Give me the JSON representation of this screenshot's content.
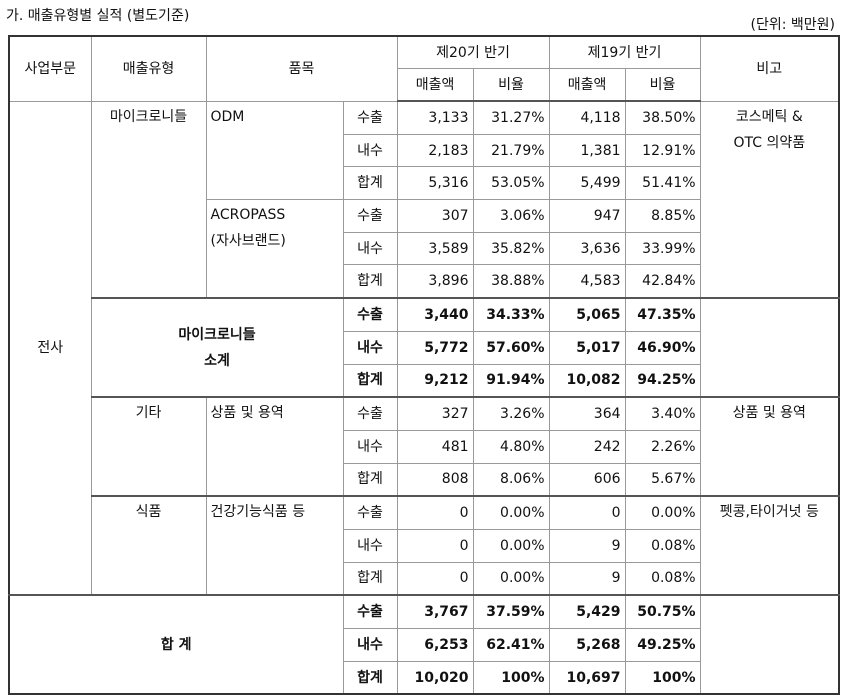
{
  "header": {
    "title": "가. 매출유형별 실적 (별도기준)",
    "unit": "(단위: 백만원)"
  },
  "table": {
    "columns": [
      "사업부문",
      "매출유형",
      "품목",
      "비고"
    ],
    "periods": [
      "제20기 반기",
      "제19기 반기"
    ],
    "subcolumns": [
      "매출액",
      "비율",
      "매출액",
      "비율"
    ],
    "division": "전사",
    "sections": [
      {
        "type": [
          "마이크로니들"
        ],
        "note": [
          "코스메틱 &",
          "OTC 의약품"
        ],
        "items": [
          {
            "product": [
              "ODM"
            ],
            "rows": [
              {
                "kind": "수출",
                "values": [
                  "3,133",
                  "31.27%",
                  "4,118",
                  "38.50%"
                ]
              },
              {
                "kind": "내수",
                "values": [
                  "2,183",
                  "21.79%",
                  "1,381",
                  "12.91%"
                ]
              },
              {
                "kind": "합계",
                "values": [
                  "5,316",
                  "53.05%",
                  "5,499",
                  "51.41%"
                ]
              }
            ]
          },
          {
            "product": [
              "ACROPASS",
              "(자사브랜드)"
            ],
            "rows": [
              {
                "kind": "수출",
                "values": [
                  "307",
                  "3.06%",
                  "947",
                  "8.85%"
                ]
              },
              {
                "kind": "내수",
                "values": [
                  "3,589",
                  "35.82%",
                  "3,636",
                  "33.99%"
                ]
              },
              {
                "kind": "합계",
                "values": [
                  "3,896",
                  "38.88%",
                  "4,583",
                  "42.84%"
                ]
              }
            ]
          }
        ]
      },
      {
        "subtotal": [
          "마이크로니들",
          "소계"
        ],
        "rows": [
          {
            "kind": "수출",
            "values": [
              "3,440",
              "34.33%",
              "5,065",
              "47.35%"
            ]
          },
          {
            "kind": "내수",
            "values": [
              "5,772",
              "57.60%",
              "5,017",
              "46.90%"
            ]
          },
          {
            "kind": "합계",
            "values": [
              "9,212",
              "91.94%",
              "10,082",
              "94.25%"
            ]
          }
        ]
      },
      {
        "type": [
          "기타"
        ],
        "note": [
          "상품 및 용역"
        ],
        "items": [
          {
            "product": [
              "상품 및 용역"
            ],
            "rows": [
              {
                "kind": "수출",
                "values": [
                  "327",
                  "3.26%",
                  "364",
                  "3.40%"
                ]
              },
              {
                "kind": "내수",
                "values": [
                  "481",
                  "4.80%",
                  "242",
                  "2.26%"
                ]
              },
              {
                "kind": "합계",
                "values": [
                  "808",
                  "8.06%",
                  "606",
                  "5.67%"
                ]
              }
            ]
          }
        ]
      },
      {
        "type": [
          "식품"
        ],
        "note": [
          "펫콩,타이거넛 등"
        ],
        "items": [
          {
            "product": [
              "건강기능식품 등"
            ],
            "rows": [
              {
                "kind": "수출",
                "values": [
                  "0",
                  "0.00%",
                  "0",
                  "0.00%"
                ]
              },
              {
                "kind": "내수",
                "values": [
                  "0",
                  "0.00%",
                  "9",
                  "0.08%"
                ]
              },
              {
                "kind": "합계",
                "values": [
                  "0",
                  "0.00%",
                  "9",
                  "0.08%"
                ]
              }
            ]
          }
        ]
      }
    ],
    "total": {
      "label": "합 계",
      "rows": [
        {
          "kind": "수출",
          "values": [
            "3,767",
            "37.59%",
            "5,429",
            "50.75%"
          ]
        },
        {
          "kind": "내수",
          "values": [
            "6,253",
            "62.41%",
            "5,268",
            "49.25%"
          ]
        },
        {
          "kind": "합계",
          "values": [
            "10,020",
            "100%",
            "10,697",
            "100%"
          ]
        }
      ]
    }
  }
}
